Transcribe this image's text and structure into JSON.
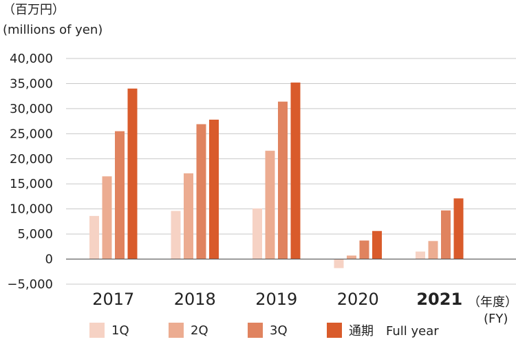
{
  "chart_data": {
    "type": "bar",
    "unit_label_ja": "（百万円）",
    "unit_label_en": "(millions of yen)",
    "xlabel_ja": "（年度）",
    "xlabel_en": "(FY)",
    "categories": [
      "2017",
      "2018",
      "2019",
      "2020",
      "2021"
    ],
    "highlight_category": "2021",
    "ylim": [
      -5000,
      40000
    ],
    "yticks": [
      -5000,
      0,
      5000,
      10000,
      15000,
      20000,
      25000,
      30000,
      35000,
      40000
    ],
    "ytick_labels": [
      "−5,000",
      "0",
      "5,000",
      "10,000",
      "15,000",
      "20,000",
      "25,000",
      "30,000",
      "35,000",
      "40,000"
    ],
    "grid": true,
    "legend_position": "bottom",
    "series": [
      {
        "name": "1Q",
        "color": "#f6d2c4",
        "values": [
          8600,
          9600,
          10100,
          -1800,
          1500
        ]
      },
      {
        "name": "2Q",
        "color": "#ecac91",
        "values": [
          16500,
          17100,
          21600,
          700,
          3600
        ]
      },
      {
        "name": "3Q",
        "color": "#e0835f",
        "values": [
          25500,
          26900,
          31400,
          3700,
          9700
        ]
      },
      {
        "name": "通期　Full year",
        "color": "#d95b2b",
        "values": [
          34000,
          27800,
          35200,
          5600,
          12100
        ]
      }
    ]
  }
}
